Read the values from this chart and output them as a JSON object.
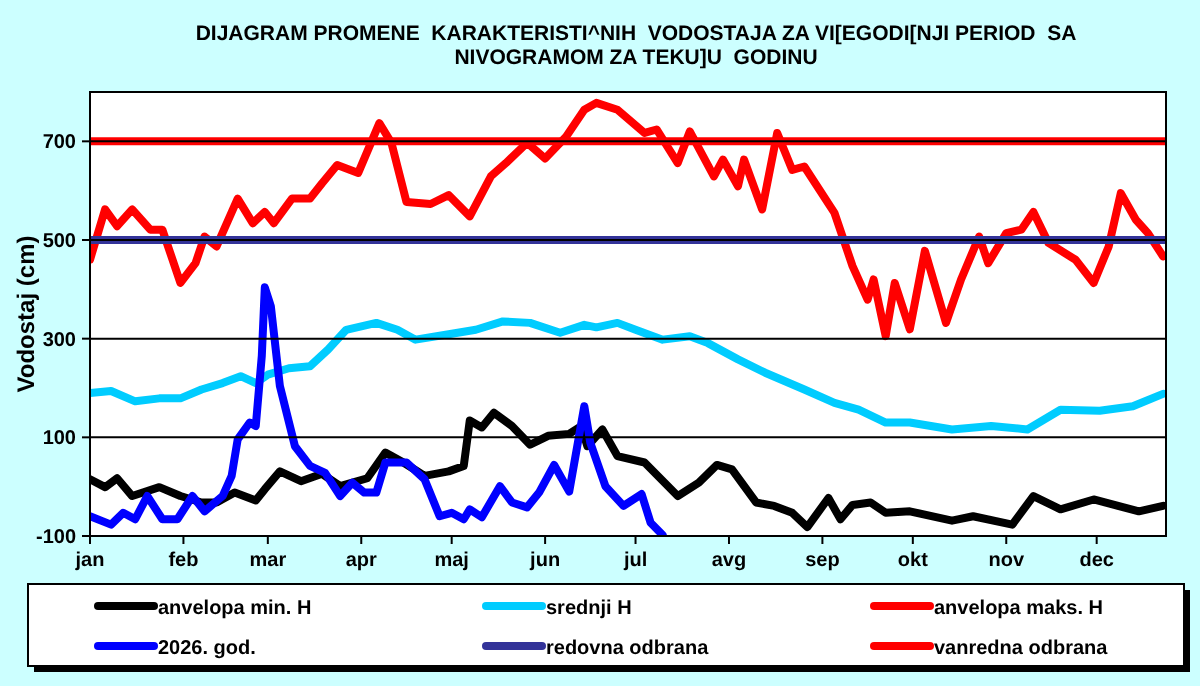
{
  "chart_data": {
    "type": "line",
    "title": "DIJAGRAM PROMENE  KARAKTERISTI^NIH  VODOSTAJA ZA VI[EGODI[NJI PERIOD  SA NIVOGRAMOM ZA TEKU]U  GODINU",
    "ylabel": "Vodostaj (cm)",
    "xlim": [
      "--01-01",
      "--12-24"
    ],
    "xticks": [
      {
        "value": "--01-01",
        "label": "jan"
      },
      {
        "value": "--02-01",
        "label": "feb"
      },
      {
        "value": "--03-01",
        "label": "mar"
      },
      {
        "value": "--04-01",
        "label": "apr"
      },
      {
        "value": "--05-01",
        "label": "maj"
      },
      {
        "value": "--06-01",
        "label": "jun"
      },
      {
        "value": "--07-01",
        "label": "jul"
      },
      {
        "value": "--08-01",
        "label": "avg"
      },
      {
        "value": "--09-01",
        "label": "sep"
      },
      {
        "value": "--10-01",
        "label": "okt"
      },
      {
        "value": "--11-01",
        "label": "nov"
      },
      {
        "value": "--12-01",
        "label": "dec"
      }
    ],
    "ylim": [
      -100,
      800
    ],
    "yticks": [
      -100,
      100,
      300,
      500,
      700
    ],
    "grid": "y",
    "legend": "bottom",
    "line_style": "solid",
    "series": [
      {
        "name": "anvelopa min. H",
        "color": "#000000",
        "x": [
          "--01-01",
          "--01-06",
          "--01-10",
          "--01-15",
          "--01-24",
          "--01-31",
          "--02-07",
          "--02-12",
          "--02-18",
          "--02-25",
          "--02-28",
          "--03-05",
          "--03-12",
          "--03-19",
          "--03-25",
          "--04-03",
          "--04-09",
          "--04-15",
          "--04-22",
          "--04-30",
          "--05-05",
          "--05-07",
          "--05-11",
          "--05-15",
          "--05-21",
          "--05-27",
          "--06-02",
          "--06-09",
          "--06-13",
          "--06-15",
          "--06-20",
          "--06-25",
          "--07-04",
          "--07-15",
          "--07-22",
          "--07-28",
          "--08-02",
          "--08-10",
          "--08-16",
          "--08-22",
          "--08-27",
          "--09-03",
          "--09-07",
          "--09-11",
          "--09-17",
          "--09-22",
          "--09-30",
          "--10-14",
          "--10-21",
          "--11-03",
          "--11-10",
          "--11-19",
          "--11-30",
          "--12-15",
          "--12-23"
        ],
        "values": [
          15,
          -1,
          17,
          -19,
          -1,
          -19,
          -32,
          -32,
          -12,
          -28,
          -5,
          31,
          11,
          26,
          1,
          17,
          69,
          49,
          22,
          31,
          42,
          134,
          120,
          150,
          123,
          85,
          103,
          107,
          123,
          82,
          116,
          62,
          49,
          -19,
          8,
          44,
          35,
          -32,
          -39,
          -53,
          -82,
          -23,
          -66,
          -37,
          -32,
          -53,
          -50,
          -69,
          -60,
          -77,
          -19,
          -46,
          -26,
          -50,
          -39
        ]
      },
      {
        "name": "srednji H",
        "color": "#00ccff",
        "x": [
          "--01-01",
          "--01-08",
          "--01-16",
          "--01-24",
          "--01-31",
          "--02-07",
          "--02-14",
          "--02-20",
          "--02-25",
          "--03-01",
          "--03-08",
          "--03-15",
          "--03-21",
          "--03-27",
          "--04-06",
          "--04-13",
          "--04-19",
          "--04-30",
          "--05-09",
          "--05-18",
          "--05-27",
          "--06-06",
          "--06-14",
          "--06-18",
          "--06-25",
          "--07-01",
          "--07-10",
          "--07-19",
          "--07-25",
          "--08-04",
          "--08-13",
          "--08-26",
          "--09-05",
          "--09-13",
          "--09-22",
          "--09-30",
          "--10-14",
          "--10-27",
          "--11-08",
          "--11-19",
          "--12-02",
          "--12-13",
          "--12-23"
        ],
        "values": [
          190,
          194,
          173,
          179,
          179,
          197,
          210,
          224,
          210,
          227,
          240,
          244,
          278,
          318,
          332,
          318,
          298,
          309,
          318,
          335,
          332,
          312,
          328,
          323,
          332,
          318,
          298,
          305,
          291,
          258,
          231,
          197,
          170,
          156,
          130,
          130,
          116,
          123,
          116,
          156,
          154,
          163,
          188
        ]
      },
      {
        "name": "anvelopa maks. H",
        "color": "#ff0000",
        "x": [
          "--01-01",
          "--01-06",
          "--01-10",
          "--01-15",
          "--01-21",
          "--01-25",
          "--01-31",
          "--02-05",
          "--02-08",
          "--02-12",
          "--02-19",
          "--02-24",
          "--02-28",
          "--03-03",
          "--03-09",
          "--03-15",
          "--03-19",
          "--03-24",
          "--03-31",
          "--04-07",
          "--04-11",
          "--04-16",
          "--04-24",
          "--04-30",
          "--05-07",
          "--05-14",
          "--05-19",
          "--05-26",
          "--06-01",
          "--06-08",
          "--06-14",
          "--06-18",
          "--06-25",
          "--07-04",
          "--07-08",
          "--07-15",
          "--07-19",
          "--07-27",
          "--07-30",
          "--08-04",
          "--08-06",
          "--08-12",
          "--08-17",
          "--08-22",
          "--08-26",
          "--09-05",
          "--09-11",
          "--09-16",
          "--09-18",
          "--09-22",
          "--09-25",
          "--09-30",
          "--10-05",
          "--10-12",
          "--10-17",
          "--10-23",
          "--10-26",
          "--11-01",
          "--11-06",
          "--11-10",
          "--11-15",
          "--11-24",
          "--11-30",
          "--12-05",
          "--12-09",
          "--12-14",
          "--12-18",
          "--12-23"
        ],
        "values": [
          460,
          562,
          528,
          562,
          521,
          521,
          413,
          453,
          507,
          487,
          584,
          534,
          557,
          534,
          584,
          584,
          615,
          652,
          636,
          737,
          697,
          577,
          573,
          591,
          548,
          629,
          656,
          697,
          665,
          710,
          764,
          778,
          764,
          717,
          724,
          656,
          720,
          629,
          663,
          609,
          663,
          562,
          717,
          642,
          649,
          555,
          447,
          379,
          420,
          305,
          413,
          319,
          478,
          332,
          420,
          507,
          453,
          514,
          521,
          557,
          494,
          460,
          413,
          487,
          595,
          541,
          514,
          467
        ]
      },
      {
        "name": "2026. god.",
        "color": "#0000ff",
        "x": [
          "--01-01",
          "--01-08",
          "--01-12",
          "--01-16",
          "--01-20",
          "--01-25",
          "--01-30",
          "--02-04",
          "--02-08",
          "--02-14",
          "--02-17",
          "--02-19",
          "--02-23",
          "--02-25",
          "--02-27",
          "--02-28",
          "--03-02",
          "--03-05",
          "--03-10",
          "--03-15",
          "--03-20",
          "--03-25",
          "--03-29",
          "--04-02",
          "--04-06",
          "--04-09",
          "--04-16",
          "--04-22",
          "--04-27",
          "--05-01",
          "--05-05",
          "--05-07",
          "--05-11",
          "--05-17",
          "--05-21",
          "--05-26",
          "--05-30",
          "--06-04",
          "--06-09",
          "--06-14",
          "--06-16",
          "--06-21",
          "--06-27",
          "--07-03",
          "--07-06",
          "--07-10"
        ],
        "values": [
          -60,
          -77,
          -53,
          -66,
          -19,
          -66,
          -66,
          -19,
          -50,
          -19,
          22,
          96,
          130,
          123,
          265,
          404,
          366,
          204,
          82,
          42,
          28,
          -19,
          8,
          -12,
          -12,
          49,
          49,
          15,
          -60,
          -53,
          -66,
          -46,
          -62,
          1,
          -32,
          -42,
          -12,
          44,
          -10,
          163,
          89,
          1,
          -39,
          -15,
          -73,
          -98
        ]
      },
      {
        "name": "redovna odbrana",
        "color": "#333399",
        "x": [
          "--01-01",
          "--12-24"
        ],
        "values": [
          500,
          500
        ]
      },
      {
        "name": "vanredna odbrana",
        "color": "#ff0000",
        "x": [
          "--01-01",
          "--12-24"
        ],
        "values": [
          700,
          700
        ]
      }
    ]
  }
}
